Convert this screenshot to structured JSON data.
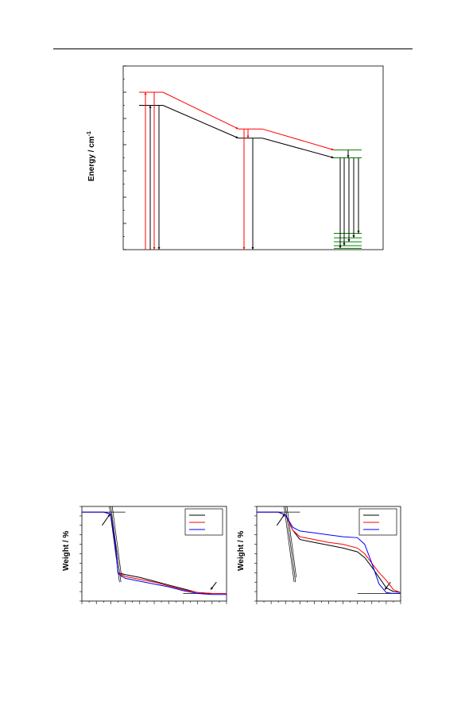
{
  "chart_data": [
    {
      "type": "line",
      "chart_kind": "energy-level diagram",
      "ylabel": "Energy / cm",
      "ylabel_superscript": "-1",
      "levels": [
        {
          "group": 0,
          "color": "#ff0000",
          "energy": 6.0
        },
        {
          "group": 0,
          "color": "#000000",
          "energy": 5.5
        },
        {
          "group": 1,
          "color": "#ff0000",
          "energy": 4.6
        },
        {
          "group": 1,
          "color": "#000000",
          "energy": 4.25
        },
        {
          "group": 2,
          "color": "#008000",
          "energy": 3.8
        },
        {
          "group": 2,
          "color": "#008000",
          "energy": 3.5
        },
        {
          "group": 2,
          "color": "#008000",
          "energy": 0.62
        },
        {
          "group": 2,
          "color": "#008000",
          "energy": 0.45
        },
        {
          "group": 2,
          "color": "#008000",
          "energy": 0.3
        },
        {
          "group": 2,
          "color": "#008000",
          "energy": 0.15
        },
        {
          "group": 2,
          "color": "#008000",
          "energy": 0.05
        }
      ],
      "transfers": [
        {
          "color": "#ff0000",
          "from": [
            0,
            6.0
          ],
          "to": [
            1,
            4.6
          ]
        },
        {
          "color": "#ff0000",
          "from": [
            1,
            4.6
          ],
          "to": [
            2,
            3.8
          ]
        },
        {
          "color": "#000000",
          "from": [
            0,
            5.5
          ],
          "to": [
            1,
            4.25
          ]
        },
        {
          "color": "#000000",
          "from": [
            1,
            4.25
          ],
          "to": [
            2,
            3.5
          ]
        }
      ],
      "ylim": [
        0,
        7
      ]
    },
    {
      "type": "line",
      "ylabel": "Weight / %",
      "xlim": [
        0,
        1000
      ],
      "ylim": [
        0,
        100
      ],
      "series": [
        {
          "color": "#000000",
          "x": [
            0,
            150,
            200,
            230,
            250,
            300,
            400,
            500,
            600,
            700,
            800,
            900,
            1000
          ],
          "y": [
            94,
            94,
            92,
            60,
            30,
            28,
            25,
            21,
            17,
            13,
            9,
            8,
            8
          ]
        },
        {
          "color": "#ff0000",
          "x": [
            0,
            150,
            200,
            230,
            250,
            300,
            400,
            500,
            600,
            700,
            800,
            900,
            1000
          ],
          "y": [
            94,
            94,
            92,
            62,
            30,
            26,
            23,
            20,
            16,
            12,
            9,
            8,
            8
          ]
        },
        {
          "color": "#0000ff",
          "x": [
            0,
            150,
            200,
            230,
            250,
            300,
            400,
            500,
            600,
            700,
            800,
            900,
            1000
          ],
          "y": [
            94,
            94,
            92,
            62,
            29,
            24,
            21,
            18,
            15,
            11,
            8,
            7,
            7
          ]
        }
      ]
    },
    {
      "type": "line",
      "ylabel": "Weight / %",
      "xlim": [
        0,
        1000
      ],
      "ylim": [
        0,
        100
      ],
      "series": [
        {
          "color": "#000000",
          "x": [
            0,
            150,
            200,
            250,
            300,
            400,
            500,
            600,
            700,
            750,
            800,
            850,
            900,
            950,
            1000
          ],
          "y": [
            94,
            94,
            91,
            75,
            65,
            62,
            59,
            56,
            52,
            46,
            36,
            25,
            14,
            10,
            9
          ]
        },
        {
          "color": "#ff0000",
          "x": [
            0,
            150,
            200,
            250,
            300,
            400,
            500,
            600,
            700,
            750,
            800,
            850,
            900,
            950,
            1000
          ],
          "y": [
            94,
            94,
            91,
            75,
            68,
            65,
            62,
            60,
            56,
            50,
            40,
            30,
            22,
            12,
            9
          ]
        },
        {
          "color": "#0000ff",
          "x": [
            0,
            150,
            200,
            250,
            300,
            400,
            500,
            600,
            700,
            750,
            800,
            850,
            900,
            950,
            1000
          ],
          "y": [
            94,
            94,
            91,
            78,
            74,
            72,
            70,
            68,
            67,
            60,
            40,
            18,
            9,
            8,
            8
          ]
        }
      ]
    }
  ]
}
